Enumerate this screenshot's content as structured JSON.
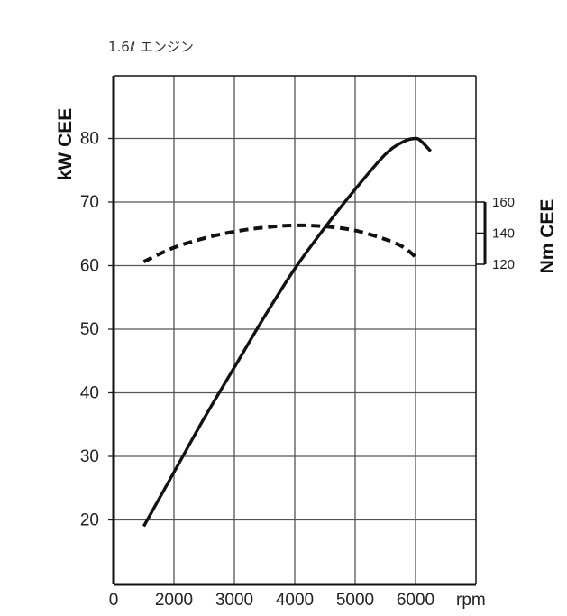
{
  "chart_data": {
    "type": "line",
    "title": "1.6ℓ エンジン",
    "xlabel": "rpm",
    "ylabel": "kW CEE",
    "y2label": "Nm CEE",
    "x_ticks": [
      "0",
      "2000",
      "3000",
      "4000",
      "5000",
      "6000"
    ],
    "y_ticks": [
      "20",
      "30",
      "40",
      "50",
      "60",
      "70",
      "80"
    ],
    "y2_ticks": [
      "120",
      "140",
      "160"
    ],
    "xlim": [
      1000,
      6500
    ],
    "ylim": [
      10,
      90
    ],
    "y2lim": [
      120,
      160
    ],
    "grid": true,
    "series": [
      {
        "axis": "left",
        "style": "solid",
        "color": "#111111",
        "x": [
          1500,
          2000,
          2500,
          3000,
          3500,
          4000,
          4500,
          5000,
          5500,
          5800,
          6000,
          6100,
          6250
        ],
        "y": [
          19,
          27.5,
          36,
          44,
          52,
          59.5,
          66,
          72,
          77.5,
          79.5,
          80,
          79.5,
          78
        ]
      },
      {
        "axis": "right",
        "style": "dashed",
        "color": "#111111",
        "x": [
          1500,
          2000,
          2500,
          3000,
          3500,
          4000,
          4500,
          5000,
          5500,
          5800,
          6000
        ],
        "y": [
          121.7,
          130.7,
          136.7,
          141.0,
          143.7,
          145.0,
          144.3,
          141.7,
          136.0,
          131.0,
          124.7
        ]
      }
    ]
  }
}
